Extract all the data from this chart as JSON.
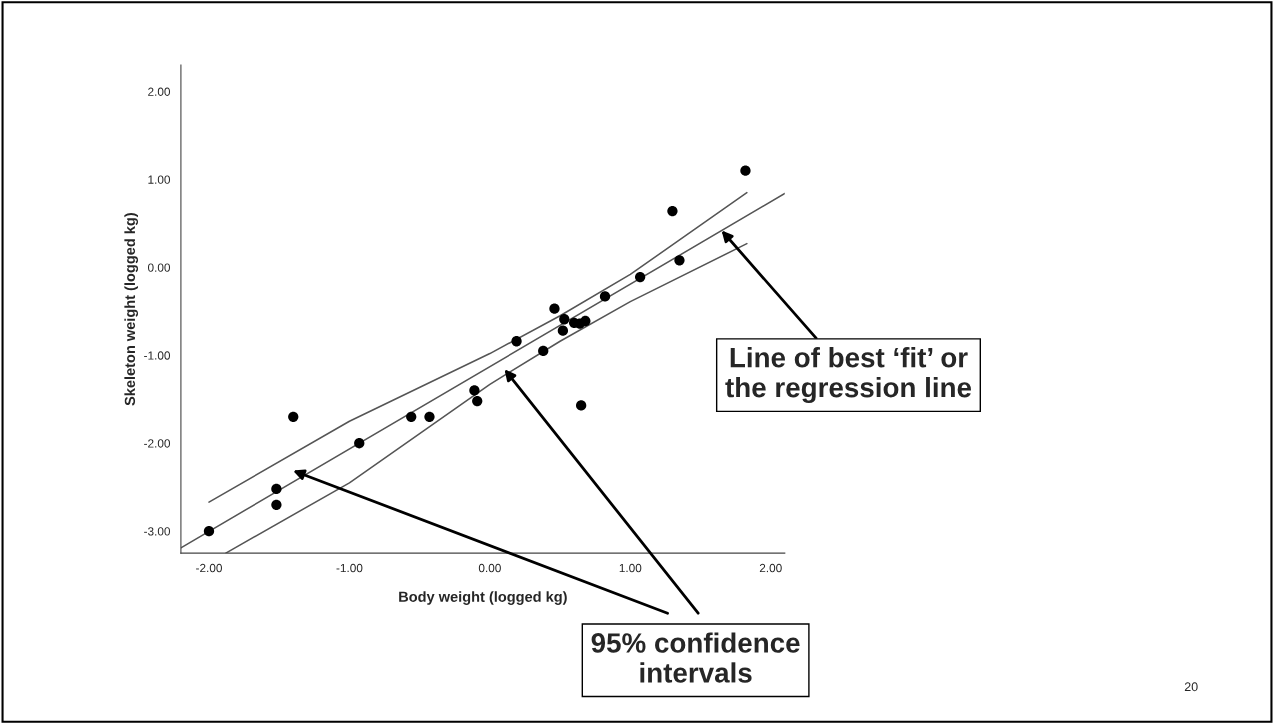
{
  "chart_data": {
    "type": "scatter",
    "xlabel": "Body weight (logged kg)",
    "ylabel": "Skeleton weight (logged kg)",
    "xlim": [
      -2.2,
      2.1
    ],
    "ylim": [
      -3.25,
      2.3
    ],
    "xticks": [
      {
        "value": -2,
        "label": "-2.00"
      },
      {
        "value": -1,
        "label": "-1.00"
      },
      {
        "value": 0,
        "label": "0.00"
      },
      {
        "value": 1,
        "label": "1.00"
      },
      {
        "value": 2,
        "label": "2.00"
      }
    ],
    "yticks": [
      {
        "value": -3,
        "label": "-3.00"
      },
      {
        "value": -2,
        "label": "-2.00"
      },
      {
        "value": -1,
        "label": "-1.00"
      },
      {
        "value": 0,
        "label": "0.00"
      },
      {
        "value": 1,
        "label": "1.00"
      },
      {
        "value": 2,
        "label": "2.00"
      }
    ],
    "grid": false,
    "legend": false,
    "marker": "circle",
    "series": [
      {
        "color": "#000000",
        "x": [
          -2.0,
          -1.52,
          -1.52,
          -1.4,
          -0.93,
          -0.56,
          -0.43,
          -0.11,
          -0.09,
          0.19,
          0.38,
          0.46,
          0.53,
          0.52,
          0.6,
          0.64,
          0.68,
          0.65,
          0.82,
          1.07,
          1.3,
          1.35,
          1.82
        ],
        "values": [
          -3.0,
          -2.52,
          -2.7,
          -1.7,
          -2.0,
          -1.7,
          -1.7,
          -1.4,
          -1.52,
          -0.84,
          -0.95,
          -0.47,
          -0.59,
          -0.72,
          -0.63,
          -0.64,
          -0.61,
          -1.57,
          -0.33,
          -0.11,
          0.64,
          0.08,
          1.1
        ]
      },
      {
        "type": "line",
        "color": "#555555",
        "marker": "none",
        "x": [
          -2.2,
          2.1
        ],
        "values": [
          -3.19,
          0.84
        ]
      },
      {
        "type": "line",
        "color": "#555555",
        "marker": "none",
        "x": [
          -2.0,
          -1.0,
          0.0,
          0.5,
          1.0,
          1.83
        ],
        "values": [
          -2.67,
          -1.75,
          -0.98,
          -0.55,
          -0.08,
          0.85
        ]
      },
      {
        "type": "line",
        "color": "#555555",
        "marker": "none",
        "x": [
          -1.88,
          -1.0,
          0.0,
          0.5,
          1.0,
          1.83
        ],
        "values": [
          -3.25,
          -2.45,
          -1.33,
          -0.84,
          -0.39,
          0.27
        ]
      }
    ],
    "annotations": [
      {
        "text": "Line of best ‘fit’ or\nthe regression line",
        "x": 1.65,
        "y": 0.42
      },
      "95% confidence\nintervals",
      "20"
    ]
  }
}
